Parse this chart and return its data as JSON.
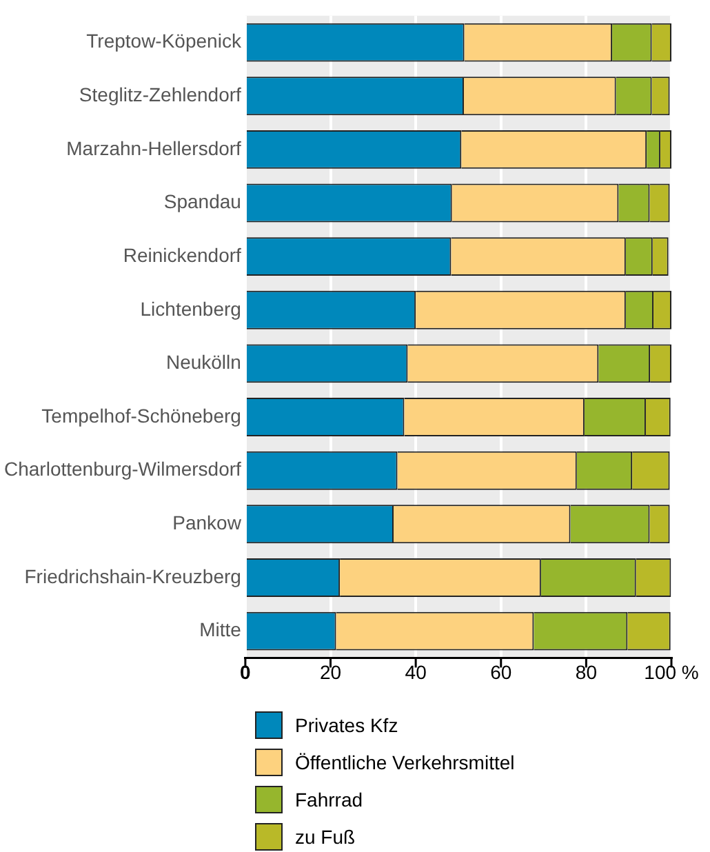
{
  "chart_data": {
    "type": "bar",
    "orientation": "horizontal",
    "stacked": true,
    "categories": [
      "Treptow-Köpenick",
      "Steglitz-Zehlendorf",
      "Marzahn-Hellersdorf",
      "Spandau",
      "Reinickendorf",
      "Lichtenberg",
      "Neukölln",
      "Tempelhof-Schöneberg",
      "Charlottenburg-Wilmersdorf",
      "Pankow",
      "Friedrichshain-Kreuzberg",
      "Mitte"
    ],
    "series": [
      {
        "name": "Privates Kfz",
        "color": "#0088bb",
        "values": [
          51.4,
          51.3,
          50.7,
          48.5,
          48.3,
          40.0,
          38.1,
          37.3,
          35.7,
          34.8,
          22.2,
          21.3
        ]
      },
      {
        "name": "Öffentliche Verkehrsmittel",
        "color": "#fdd27f",
        "values": [
          34.7,
          35.7,
          43.5,
          39.1,
          41.0,
          49.3,
          44.8,
          42.3,
          42.1,
          41.5,
          47.2,
          46.4
        ]
      },
      {
        "name": "Fahrrad",
        "color": "#96b62d",
        "values": [
          9.3,
          8.4,
          3.2,
          7.3,
          6.3,
          6.5,
          12.1,
          14.4,
          13.0,
          18.6,
          22.3,
          22.0
        ]
      },
      {
        "name": "zu Fuß",
        "color": "#b9b928",
        "values": [
          4.6,
          4.2,
          2.6,
          4.7,
          3.7,
          4.2,
          5.0,
          5.8,
          8.8,
          4.7,
          8.2,
          10.1
        ]
      }
    ],
    "xlim": [
      0,
      100
    ],
    "xticks": [
      0,
      20,
      40,
      60,
      80,
      {
        "value": 100,
        "label": "100 %"
      }
    ],
    "grid": "x",
    "legend": "bottom"
  }
}
